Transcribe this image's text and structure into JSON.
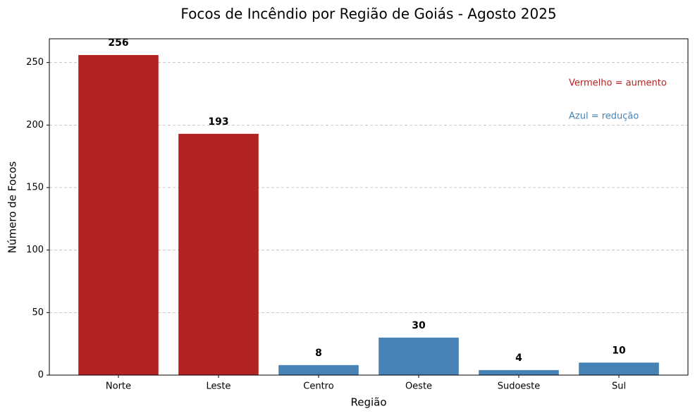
{
  "chart_data": {
    "type": "bar",
    "title": "Focos de Incêndio por Região de Goiás - Agosto 2025",
    "x_label": "Região",
    "y_label": "Número de Focos",
    "categories": [
      "Norte",
      "Leste",
      "Centro",
      "Oeste",
      "Sudoeste",
      "Sul"
    ],
    "values": [
      256,
      193,
      8,
      30,
      4,
      10
    ],
    "colors": [
      "#b22222",
      "#b22222",
      "#4682b4",
      "#4682b4",
      "#4682b4",
      "#4682b4"
    ],
    "ylim": [
      0,
      269
    ],
    "yticks": [
      0,
      50,
      100,
      150,
      200,
      250
    ],
    "grid": true,
    "annotations": [
      {
        "text": "Vermelho = aumento",
        "color": "#b22222"
      },
      {
        "text": "Azul = redução",
        "color": "#4682b4"
      }
    ]
  }
}
